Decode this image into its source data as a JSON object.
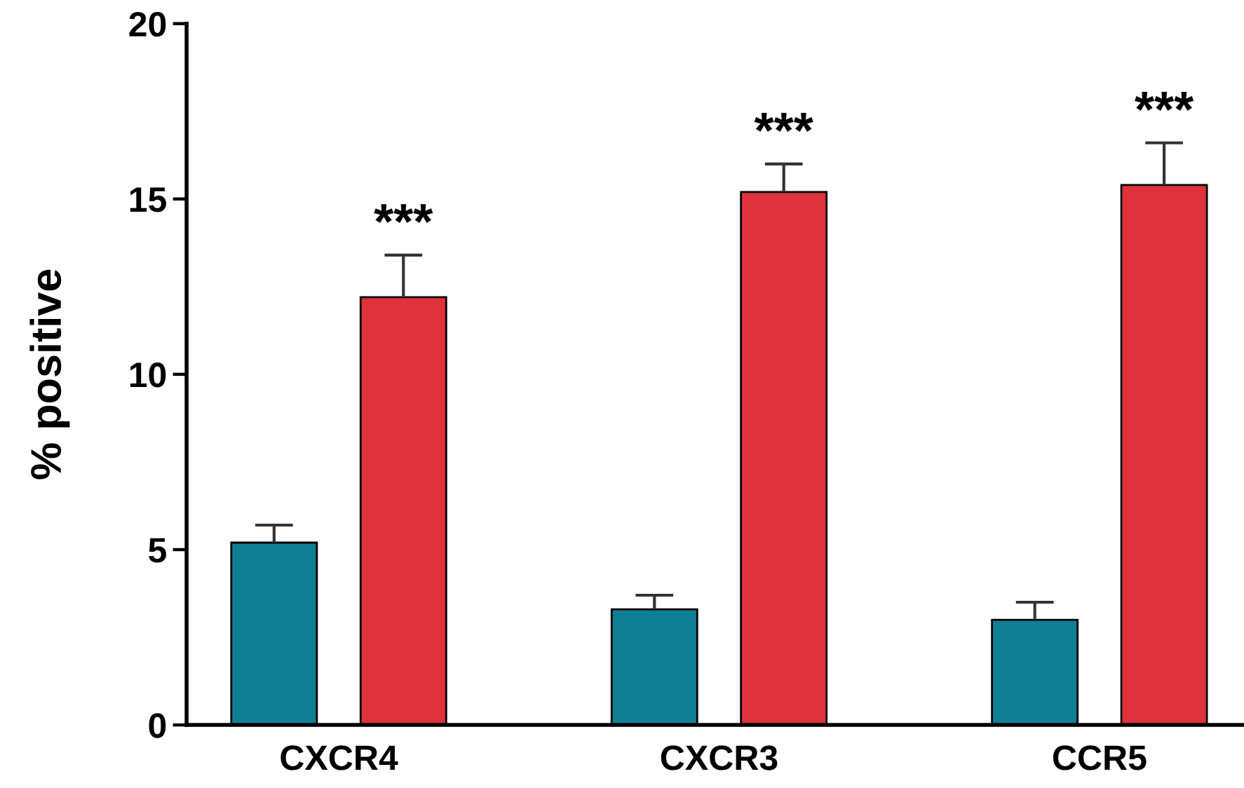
{
  "chart_data": {
    "type": "bar",
    "ylabel": "% positive",
    "categories": [
      "CXCR4",
      "CXCR3",
      "CCR5"
    ],
    "series": [
      {
        "color": "#0f7f95",
        "values": [
          5.2,
          3.3,
          3.0
        ],
        "errors": [
          [
            5.2,
            5.7
          ],
          [
            3.3,
            3.7
          ],
          [
            3.0,
            3.5
          ]
        ]
      },
      {
        "color": "#e0323c",
        "values": [
          12.2,
          15.2,
          15.4
        ],
        "errors": [
          [
            12.2,
            13.4
          ],
          [
            15.2,
            16.0
          ],
          [
            15.4,
            16.6
          ]
        ]
      }
    ],
    "ylim": [
      0,
      20
    ],
    "yticks": [
      0,
      5,
      10,
      15,
      20
    ],
    "grid": false,
    "annotations": [
      "***",
      "***",
      "***"
    ]
  }
}
